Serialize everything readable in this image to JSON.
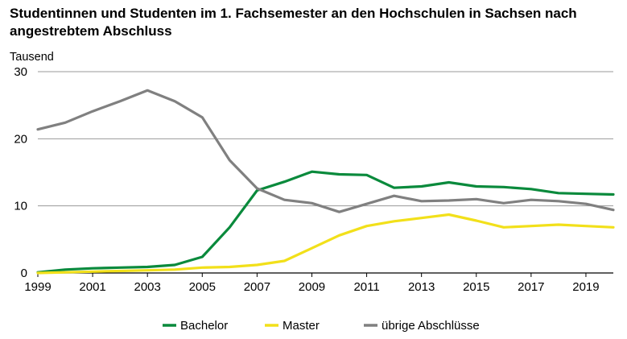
{
  "title": "Studentinnen und Studenten im 1. Fachsemester an den Hochschulen in Sachsen nach angestrebtem Abschluss",
  "chart_data": {
    "type": "line",
    "title": "Studentinnen und Studenten im 1. Fachsemester an den Hochschulen in Sachsen nach angestrebtem Abschluss",
    "ylabel": "Tausend",
    "xlabel": "",
    "ylim": [
      0,
      30
    ],
    "xlim": [
      1999,
      2020
    ],
    "yticks": [
      "0",
      "10",
      "20",
      "30"
    ],
    "xticks": [
      "1999",
      "2001",
      "2003",
      "2005",
      "2007",
      "2009",
      "2011",
      "2013",
      "2015",
      "2017",
      "2019"
    ],
    "grid": true,
    "legend_position": "bottom",
    "x": [
      1999,
      2000,
      2001,
      2002,
      2003,
      2004,
      2005,
      2006,
      2007,
      2008,
      2009,
      2010,
      2011,
      2012,
      2013,
      2014,
      2015,
      2016,
      2017,
      2018,
      2019,
      2020
    ],
    "series": [
      {
        "name": "Bachelor",
        "color": "#0a8a3c",
        "values": [
          0.1,
          0.5,
          0.7,
          0.8,
          0.9,
          1.2,
          2.4,
          6.8,
          12.3,
          13.6,
          15.1,
          14.7,
          14.6,
          12.7,
          12.9,
          13.5,
          12.9,
          12.8,
          12.5,
          11.9,
          11.8,
          11.7
        ]
      },
      {
        "name": "Master",
        "color": "#f2e01a",
        "values": [
          0.0,
          0.1,
          0.2,
          0.3,
          0.4,
          0.5,
          0.8,
          0.9,
          1.2,
          1.8,
          3.7,
          5.6,
          7.0,
          7.7,
          8.2,
          8.7,
          7.8,
          6.8,
          7.0,
          7.2,
          7.0,
          6.8
        ]
      },
      {
        "name": "übrige Abschlüsse",
        "color": "#808080",
        "values": [
          21.4,
          22.4,
          24.1,
          25.6,
          27.2,
          25.6,
          23.2,
          16.8,
          12.6,
          10.9,
          10.4,
          9.1,
          10.3,
          11.5,
          10.7,
          10.8,
          11.0,
          10.4,
          10.9,
          10.7,
          10.3,
          9.4
        ]
      }
    ]
  }
}
